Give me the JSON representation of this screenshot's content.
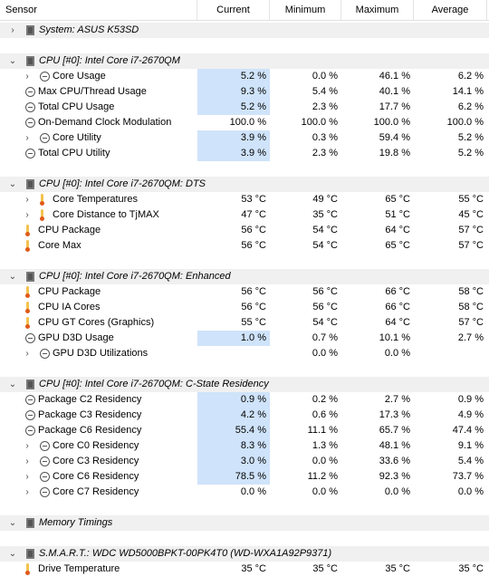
{
  "header": {
    "sensor": "Sensor",
    "current": "Current",
    "minimum": "Minimum",
    "maximum": "Maximum",
    "average": "Average"
  },
  "rows": [
    {
      "type": "group",
      "name": "System: ASUS K53SD",
      "chevron": "right",
      "icon": "chip-icon"
    },
    {
      "type": "group",
      "name": "CPU [#0]: Intel Core i7-2670QM",
      "chevron": "down",
      "icon": "chip-icon"
    },
    {
      "type": "item",
      "indent": 2,
      "chevron": "right",
      "icon": "clock-icon",
      "name": "Core Usage",
      "current": "5.2 %",
      "minimum": "0.0 %",
      "maximum": "46.1 %",
      "average": "6.2 %",
      "hl": true
    },
    {
      "type": "item",
      "indent": 1,
      "chevron": "right",
      "icon": "clock-icon",
      "name": "Max CPU/Thread Usage",
      "current": "9.3 %",
      "minimum": "5.4 %",
      "maximum": "40.1 %",
      "average": "14.1 %",
      "hl": true
    },
    {
      "type": "item",
      "indent": 1,
      "chevron": "",
      "icon": "clock-icon",
      "name": "Total CPU Usage",
      "current": "5.2 %",
      "minimum": "2.3 %",
      "maximum": "17.7 %",
      "average": "6.2 %",
      "hl": true
    },
    {
      "type": "item",
      "indent": 1,
      "chevron": "",
      "icon": "clock-icon",
      "name": "On-Demand Clock Modulation",
      "current": "100.0 %",
      "minimum": "100.0 %",
      "maximum": "100.0 %",
      "average": "100.0 %",
      "hl": false
    },
    {
      "type": "item",
      "indent": 2,
      "chevron": "right",
      "icon": "clock-icon",
      "name": "Core Utility",
      "current": "3.9 %",
      "minimum": "0.3 %",
      "maximum": "59.4 %",
      "average": "5.2 %",
      "hl": true
    },
    {
      "type": "item",
      "indent": 1,
      "chevron": "",
      "icon": "clock-icon",
      "name": "Total CPU Utility",
      "current": "3.9 %",
      "minimum": "2.3 %",
      "maximum": "19.8 %",
      "average": "5.2 %",
      "hl": true
    },
    {
      "type": "group",
      "name": "CPU [#0]: Intel Core i7-2670QM: DTS",
      "chevron": "down",
      "icon": "chip-icon"
    },
    {
      "type": "item",
      "indent": 2,
      "chevron": "right",
      "icon": "thermometer-icon",
      "name": "Core Temperatures",
      "current": "53 °C",
      "minimum": "49 °C",
      "maximum": "65 °C",
      "average": "55 °C",
      "hl": false
    },
    {
      "type": "item",
      "indent": 2,
      "chevron": "right",
      "icon": "thermometer-icon",
      "name": "Core Distance to TjMAX",
      "current": "47 °C",
      "minimum": "35 °C",
      "maximum": "51 °C",
      "average": "45 °C",
      "hl": false
    },
    {
      "type": "item",
      "indent": 1,
      "chevron": "",
      "icon": "thermometer-icon",
      "name": "CPU Package",
      "current": "56 °C",
      "minimum": "54 °C",
      "maximum": "64 °C",
      "average": "57 °C",
      "hl": false
    },
    {
      "type": "item",
      "indent": 1,
      "chevron": "",
      "icon": "thermometer-icon",
      "name": "Core Max",
      "current": "56 °C",
      "minimum": "54 °C",
      "maximum": "65 °C",
      "average": "57 °C",
      "hl": false
    },
    {
      "type": "group",
      "name": "CPU [#0]: Intel Core i7-2670QM: Enhanced",
      "chevron": "down",
      "icon": "chip-icon"
    },
    {
      "type": "item",
      "indent": 1,
      "chevron": "",
      "icon": "thermometer-icon",
      "name": "CPU Package",
      "current": "56 °C",
      "minimum": "56 °C",
      "maximum": "66 °C",
      "average": "58 °C",
      "hl": false
    },
    {
      "type": "item",
      "indent": 1,
      "chevron": "",
      "icon": "thermometer-icon",
      "name": "CPU IA Cores",
      "current": "56 °C",
      "minimum": "56 °C",
      "maximum": "66 °C",
      "average": "58 °C",
      "hl": false
    },
    {
      "type": "item",
      "indent": 1,
      "chevron": "",
      "icon": "thermometer-icon",
      "name": "CPU GT Cores (Graphics)",
      "current": "55 °C",
      "minimum": "54 °C",
      "maximum": "64 °C",
      "average": "57 °C",
      "hl": false
    },
    {
      "type": "item",
      "indent": 1,
      "chevron": "",
      "icon": "clock-icon",
      "name": "GPU D3D Usage",
      "current": "1.0 %",
      "minimum": "0.7 %",
      "maximum": "10.1 %",
      "average": "2.7 %",
      "hl": true
    },
    {
      "type": "item",
      "indent": 2,
      "chevron": "right",
      "icon": "clock-icon",
      "name": "GPU D3D Utilizations",
      "current": "",
      "minimum": "0.0 %",
      "maximum": "0.0 %",
      "average": "",
      "hl": false
    },
    {
      "type": "group",
      "name": "CPU [#0]: Intel Core i7-2670QM: C-State Residency",
      "chevron": "down",
      "icon": "chip-icon"
    },
    {
      "type": "item",
      "indent": 1,
      "chevron": "",
      "icon": "clock-icon",
      "name": "Package C2 Residency",
      "current": "0.9 %",
      "minimum": "0.2 %",
      "maximum": "2.7 %",
      "average": "0.9 %",
      "hl": true
    },
    {
      "type": "item",
      "indent": 1,
      "chevron": "",
      "icon": "clock-icon",
      "name": "Package C3 Residency",
      "current": "4.2 %",
      "minimum": "0.6 %",
      "maximum": "17.3 %",
      "average": "4.9 %",
      "hl": true
    },
    {
      "type": "item",
      "indent": 1,
      "chevron": "",
      "icon": "clock-icon",
      "name": "Package C6 Residency",
      "current": "55.4 %",
      "minimum": "11.1 %",
      "maximum": "65.7 %",
      "average": "47.4 %",
      "hl": true
    },
    {
      "type": "item",
      "indent": 2,
      "chevron": "right",
      "icon": "clock-icon",
      "name": "Core C0 Residency",
      "current": "8.3 %",
      "minimum": "1.3 %",
      "maximum": "48.1 %",
      "average": "9.1 %",
      "hl": true
    },
    {
      "type": "item",
      "indent": 2,
      "chevron": "right",
      "icon": "clock-icon",
      "name": "Core C3 Residency",
      "current": "3.0 %",
      "minimum": "0.0 %",
      "maximum": "33.6 %",
      "average": "5.4 %",
      "hl": true
    },
    {
      "type": "item",
      "indent": 2,
      "chevron": "right",
      "icon": "clock-icon",
      "name": "Core C6 Residency",
      "current": "78.5 %",
      "minimum": "11.2 %",
      "maximum": "92.3 %",
      "average": "73.7 %",
      "hl": true
    },
    {
      "type": "item",
      "indent": 2,
      "chevron": "right",
      "icon": "clock-icon",
      "name": "Core C7 Residency",
      "current": "0.0 %",
      "minimum": "0.0 %",
      "maximum": "0.0 %",
      "average": "0.0 %",
      "hl": false
    },
    {
      "type": "group",
      "name": "Memory Timings",
      "chevron": "down",
      "icon": "chip-icon"
    },
    {
      "type": "group",
      "name": "S.M.A.R.T.: WDC WD5000BPKT-00PK4T0 (WD-WXA1A92P9371)",
      "chevron": "down",
      "icon": "chip-icon"
    },
    {
      "type": "item",
      "indent": 1,
      "chevron": "",
      "icon": "thermometer-icon",
      "name": "Drive Temperature",
      "current": "35 °C",
      "minimum": "35 °C",
      "maximum": "35 °C",
      "average": "35 °C",
      "hl": false
    }
  ]
}
